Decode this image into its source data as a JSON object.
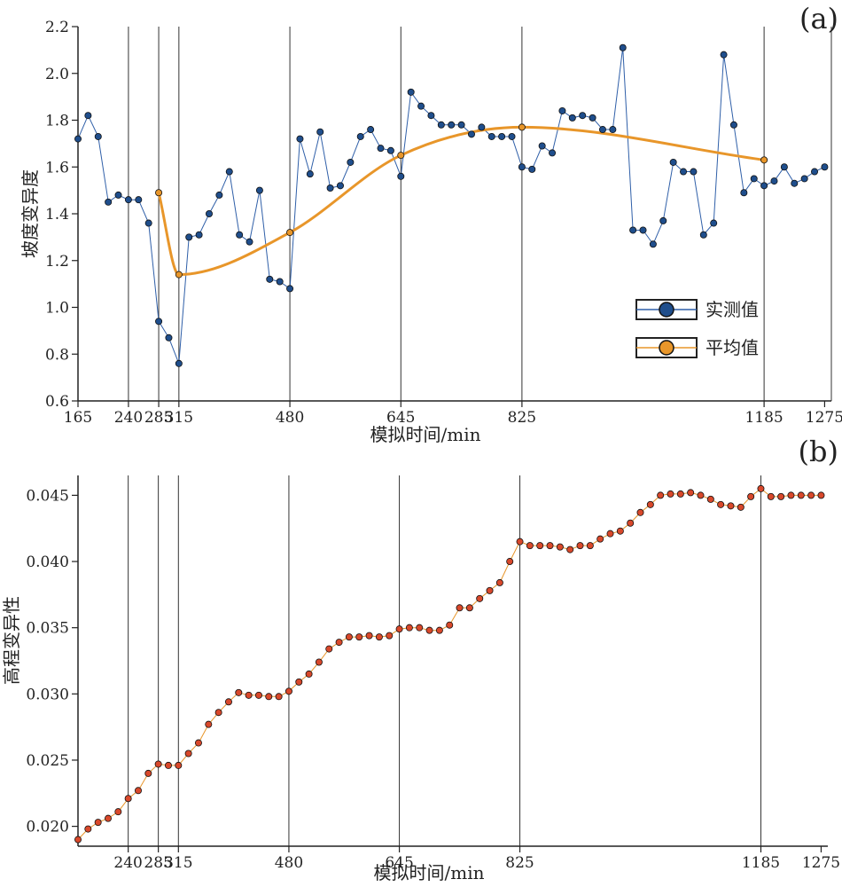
{
  "colors": {
    "measured_line": "#2f5fa8",
    "measured_marker": "#1f4e8c",
    "average_line": "#e8962a",
    "elev_line": "#e8962a",
    "elev_marker": "#d9482b",
    "axis": "#222222",
    "vline": "#333333"
  },
  "chart_data": [
    {
      "id": "a",
      "type": "line",
      "panel_label": "(a)",
      "xlabel": "模拟时间/min",
      "ylabel": "坡度变异度",
      "xlim": [
        165,
        1285
      ],
      "ylim": [
        0.6,
        2.2
      ],
      "yticks": [
        "0.6",
        "0.8",
        "1.0",
        "1.2",
        "1.4",
        "1.6",
        "1.8",
        "2.0",
        "2.2"
      ],
      "xticks": [
        "165",
        "240",
        "285",
        "315",
        "480",
        "645",
        "825",
        "1185",
        "1275"
      ],
      "vlines": [
        240,
        285,
        315,
        480,
        645,
        825,
        1185,
        1285
      ],
      "legend_position": "lower-right",
      "series": [
        {
          "name": "实测值",
          "x": [
            165,
            180,
            195,
            210,
            225,
            240,
            255,
            270,
            285,
            300,
            315,
            330,
            345,
            360,
            375,
            390,
            405,
            420,
            435,
            450,
            465,
            480,
            495,
            510,
            525,
            540,
            555,
            570,
            585,
            600,
            615,
            630,
            645,
            660,
            675,
            690,
            705,
            720,
            735,
            750,
            765,
            780,
            795,
            810,
            825,
            840,
            855,
            870,
            885,
            900,
            915,
            930,
            945,
            960,
            975,
            990,
            1005,
            1020,
            1035,
            1050,
            1065,
            1080,
            1095,
            1110,
            1125,
            1140,
            1155,
            1170,
            1185,
            1200,
            1215,
            1230,
            1245,
            1260,
            1275
          ],
          "y": [
            1.72,
            1.82,
            1.73,
            1.45,
            1.48,
            1.46,
            1.46,
            1.36,
            0.94,
            0.87,
            0.76,
            1.3,
            1.31,
            1.4,
            1.48,
            1.58,
            1.31,
            1.28,
            1.5,
            1.12,
            1.11,
            1.08,
            1.72,
            1.57,
            1.75,
            1.51,
            1.52,
            1.62,
            1.73,
            1.76,
            1.68,
            1.67,
            1.56,
            1.92,
            1.86,
            1.82,
            1.78,
            1.78,
            1.78,
            1.74,
            1.77,
            1.73,
            1.73,
            1.73,
            1.6,
            1.59,
            1.69,
            1.66,
            1.84,
            1.81,
            1.82,
            1.81,
            1.76,
            1.76,
            2.11,
            1.33,
            1.33,
            1.27,
            1.37,
            1.62,
            1.58,
            1.58,
            1.31,
            1.36,
            2.08,
            1.78,
            1.49,
            1.55,
            1.52,
            1.54,
            1.6,
            1.53,
            1.55,
            1.58,
            1.6
          ]
        },
        {
          "name": "平均值",
          "x": [
            285,
            315,
            480,
            645,
            825,
            1185
          ],
          "y": [
            1.49,
            1.14,
            1.32,
            1.65,
            1.77,
            1.63
          ]
        }
      ]
    },
    {
      "id": "b",
      "type": "line",
      "panel_label": "(b)",
      "xlabel": "模拟时间/min",
      "ylabel": "高程变异性",
      "xlim": [
        165,
        1285
      ],
      "ylim": [
        0.0185,
        0.0465
      ],
      "yticks": [
        "0.020",
        "0.025",
        "0.030",
        "0.035",
        "0.040",
        "0.045"
      ],
      "xticks": [
        "240",
        "285",
        "315",
        "480",
        "645",
        "825",
        "1185",
        "1275"
      ],
      "vlines": [
        240,
        285,
        315,
        480,
        645,
        825,
        1185
      ],
      "series": [
        {
          "x": [
            165,
            180,
            195,
            210,
            225,
            240,
            255,
            270,
            285,
            300,
            315,
            330,
            345,
            360,
            375,
            390,
            405,
            420,
            435,
            450,
            465,
            480,
            495,
            510,
            525,
            540,
            555,
            570,
            585,
            600,
            615,
            630,
            645,
            660,
            675,
            690,
            705,
            720,
            735,
            750,
            765,
            780,
            795,
            810,
            825,
            840,
            855,
            870,
            885,
            900,
            915,
            930,
            945,
            960,
            975,
            990,
            1005,
            1020,
            1035,
            1050,
            1065,
            1080,
            1095,
            1110,
            1125,
            1140,
            1155,
            1170,
            1185,
            1200,
            1215,
            1230,
            1245,
            1260,
            1275
          ],
          "y": [
            0.019,
            0.0198,
            0.0203,
            0.0206,
            0.0211,
            0.0221,
            0.0227,
            0.024,
            0.0247,
            0.0246,
            0.0246,
            0.0255,
            0.0263,
            0.0277,
            0.0286,
            0.0294,
            0.0301,
            0.0299,
            0.0299,
            0.0298,
            0.0298,
            0.0302,
            0.0309,
            0.0315,
            0.0324,
            0.0334,
            0.0339,
            0.0343,
            0.0343,
            0.0344,
            0.0343,
            0.0344,
            0.0349,
            0.035,
            0.035,
            0.0348,
            0.0348,
            0.0352,
            0.0365,
            0.0365,
            0.0372,
            0.0378,
            0.0384,
            0.04,
            0.0415,
            0.0412,
            0.0412,
            0.0412,
            0.0411,
            0.0409,
            0.0412,
            0.0412,
            0.0417,
            0.0421,
            0.0423,
            0.0429,
            0.0437,
            0.0443,
            0.045,
            0.0451,
            0.0451,
            0.0452,
            0.045,
            0.0447,
            0.0443,
            0.0442,
            0.0441,
            0.0449,
            0.0455,
            0.0449,
            0.0449,
            0.045,
            0.045,
            0.045,
            0.045
          ]
        }
      ]
    }
  ]
}
